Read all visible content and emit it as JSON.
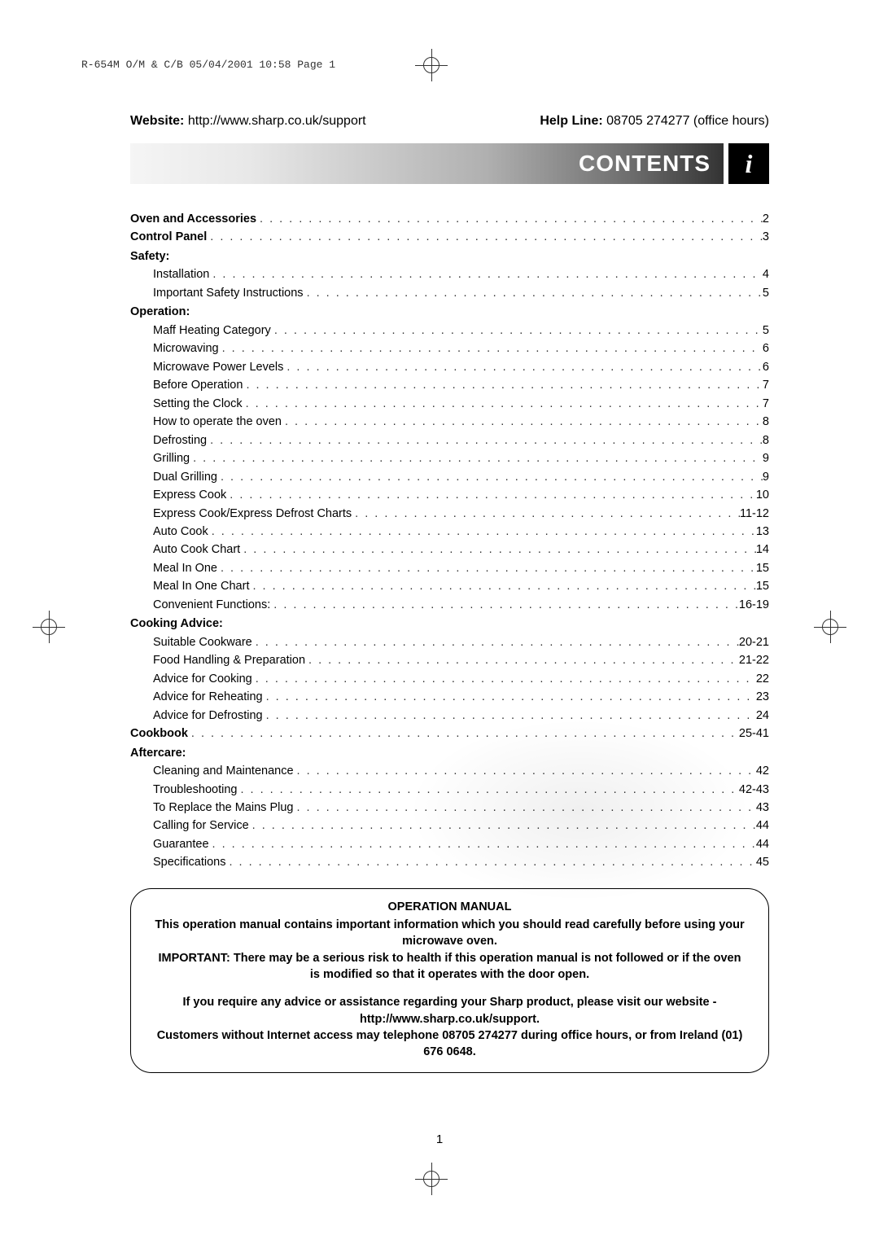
{
  "meta": {
    "header_stamp": "R-654M O/M & C/B  05/04/2001  10:58  Page 1",
    "website_label": "Website:",
    "website_url": "http://www.sharp.co.uk/support",
    "helpline_label": "Help Line:",
    "helpline_text": "08705 274277 (office hours)"
  },
  "title": "CONTENTS",
  "icon_glyph": "i",
  "page_number": "1",
  "colors": {
    "gradient_start": "#f5f5f5",
    "gradient_end": "#333333",
    "icon_bg": "#000000",
    "icon_fg": "#ffffff",
    "text": "#000000"
  },
  "toc": [
    {
      "label": "Oven and Accessories",
      "page": "2",
      "bold": true,
      "indent": false,
      "dots": true
    },
    {
      "label": "Control Panel",
      "page": "3",
      "bold": true,
      "indent": false,
      "dots": true
    },
    {
      "label": "Safety:",
      "page": "",
      "bold": true,
      "indent": false,
      "dots": false
    },
    {
      "label": "Installation",
      "page": "4",
      "bold": false,
      "indent": true,
      "dots": true
    },
    {
      "label": "Important Safety Instructions",
      "page": "5",
      "bold": false,
      "indent": true,
      "dots": true
    },
    {
      "label": "Operation:",
      "page": "",
      "bold": true,
      "indent": false,
      "dots": false
    },
    {
      "label": "Maff Heating Category",
      "page": "5",
      "bold": false,
      "indent": true,
      "dots": true
    },
    {
      "label": "Microwaving",
      "page": "6",
      "bold": false,
      "indent": true,
      "dots": true
    },
    {
      "label": "Microwave Power Levels",
      "page": "6",
      "bold": false,
      "indent": true,
      "dots": true
    },
    {
      "label": "Before Operation",
      "page": "7",
      "bold": false,
      "indent": true,
      "dots": true
    },
    {
      "label": "Setting the Clock",
      "page": "7",
      "bold": false,
      "indent": true,
      "dots": true
    },
    {
      "label": "How to operate the oven",
      "page": "8",
      "bold": false,
      "indent": true,
      "dots": true
    },
    {
      "label": "Defrosting",
      "page": "8",
      "bold": false,
      "indent": true,
      "dots": true
    },
    {
      "label": "Grilling",
      "page": "9",
      "bold": false,
      "indent": true,
      "dots": true
    },
    {
      "label": "Dual Grilling",
      "page": "9",
      "bold": false,
      "indent": true,
      "dots": true
    },
    {
      "label": "Express Cook",
      "page": "10",
      "bold": false,
      "indent": true,
      "dots": true
    },
    {
      "label": "Express Cook/Express Defrost Charts",
      "page": "11-12",
      "bold": false,
      "indent": true,
      "dots": true
    },
    {
      "label": "Auto Cook",
      "page": "13",
      "bold": false,
      "indent": true,
      "dots": true
    },
    {
      "label": "Auto Cook Chart",
      "page": "14",
      "bold": false,
      "indent": true,
      "dots": true
    },
    {
      "label": "Meal In One",
      "page": "15",
      "bold": false,
      "indent": true,
      "dots": true
    },
    {
      "label": "Meal In One Chart",
      "page": "15",
      "bold": false,
      "indent": true,
      "dots": true
    },
    {
      "label": "Convenient Functions:",
      "page": "16-19",
      "bold": false,
      "indent": true,
      "dots": true
    },
    {
      "label": "Cooking Advice:",
      "page": "",
      "bold": true,
      "indent": false,
      "dots": false
    },
    {
      "label": "Suitable Cookware",
      "page": "20-21",
      "bold": false,
      "indent": true,
      "dots": true
    },
    {
      "label": "Food Handling & Preparation",
      "page": "21-22",
      "bold": false,
      "indent": true,
      "dots": true
    },
    {
      "label": "Advice for Cooking",
      "page": "22",
      "bold": false,
      "indent": true,
      "dots": true
    },
    {
      "label": "Advice for Reheating",
      "page": "23",
      "bold": false,
      "indent": true,
      "dots": true
    },
    {
      "label": "Advice for Defrosting",
      "page": "24",
      "bold": false,
      "indent": true,
      "dots": true
    },
    {
      "label": "Cookbook",
      "page": "25-41",
      "bold": true,
      "indent": false,
      "dots": true
    },
    {
      "label": "Aftercare:",
      "page": "",
      "bold": true,
      "indent": false,
      "dots": false
    },
    {
      "label": "Cleaning and Maintenance",
      "page": "42",
      "bold": false,
      "indent": true,
      "dots": true
    },
    {
      "label": "Troubleshooting",
      "page": "42-43",
      "bold": false,
      "indent": true,
      "dots": true
    },
    {
      "label": "To Replace the Mains Plug",
      "page": "43",
      "bold": false,
      "indent": true,
      "dots": true
    },
    {
      "label": "Calling for Service",
      "page": "44",
      "bold": false,
      "indent": true,
      "dots": true
    },
    {
      "label": "Guarantee",
      "page": "44",
      "bold": false,
      "indent": true,
      "dots": true
    },
    {
      "label": "Specifications",
      "page": "45",
      "bold": false,
      "indent": true,
      "dots": true
    }
  ],
  "notice": {
    "title": "OPERATION MANUAL",
    "p1": "This operation manual contains important information which you should read carefully before using your microwave oven.",
    "p2": "IMPORTANT: There may be a serious risk to health if this operation manual is not followed or if the oven is modified so that it operates with the door open.",
    "p3": "If you require any advice or assistance regarding your Sharp product, please visit our website - http://www.sharp.co.uk/support.",
    "p4": "Customers without Internet access may telephone 08705 274277 during office hours, or from Ireland (01) 676 0648."
  }
}
